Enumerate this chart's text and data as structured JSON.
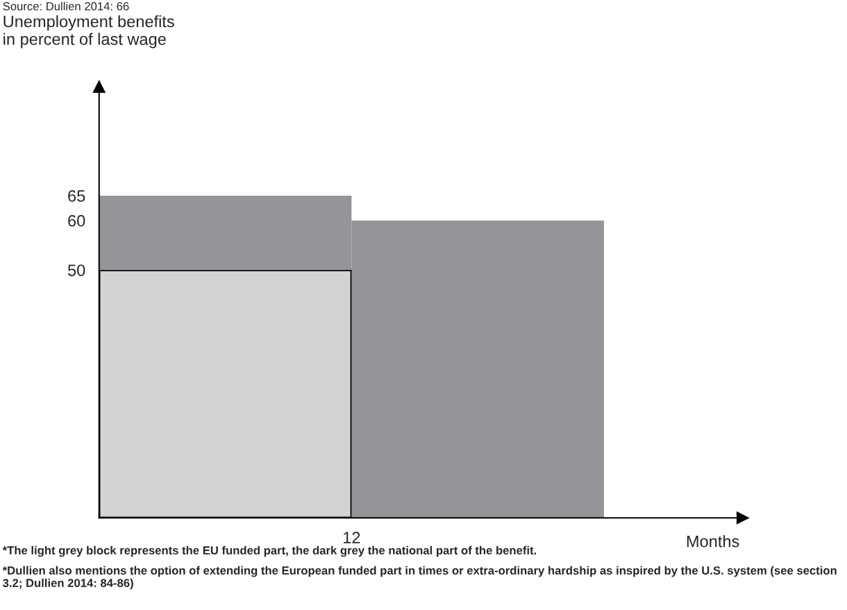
{
  "chart_data": {
    "type": "bar",
    "ylabel": "Unemployment benefits\nin percent of last wage",
    "xlabel": "Months",
    "categories": [
      null,
      null
    ],
    "stacked": true,
    "series": [
      {
        "values": [
          50,
          0
        ],
        "color": "#d1d3d4"
      },
      {
        "values": [
          15,
          60
        ],
        "color": "#939598"
      }
    ],
    "ylim": [
      0,
      87
    ],
    "yticks": [
      50,
      60,
      65
    ],
    "grid": false,
    "legend": false,
    "annotations": [
      "12",
      "Source: Dullien 2014: 66",
      "*The light grey block represents the EU funded part, the dark grey the national part of the benefit.",
      "*Dullien also mentions the option of extending the European funded part in times or extra-ordinary hardship as inspired by the U.S. system (see section 3.2; Dullien 2014: 84-86)"
    ]
  }
}
